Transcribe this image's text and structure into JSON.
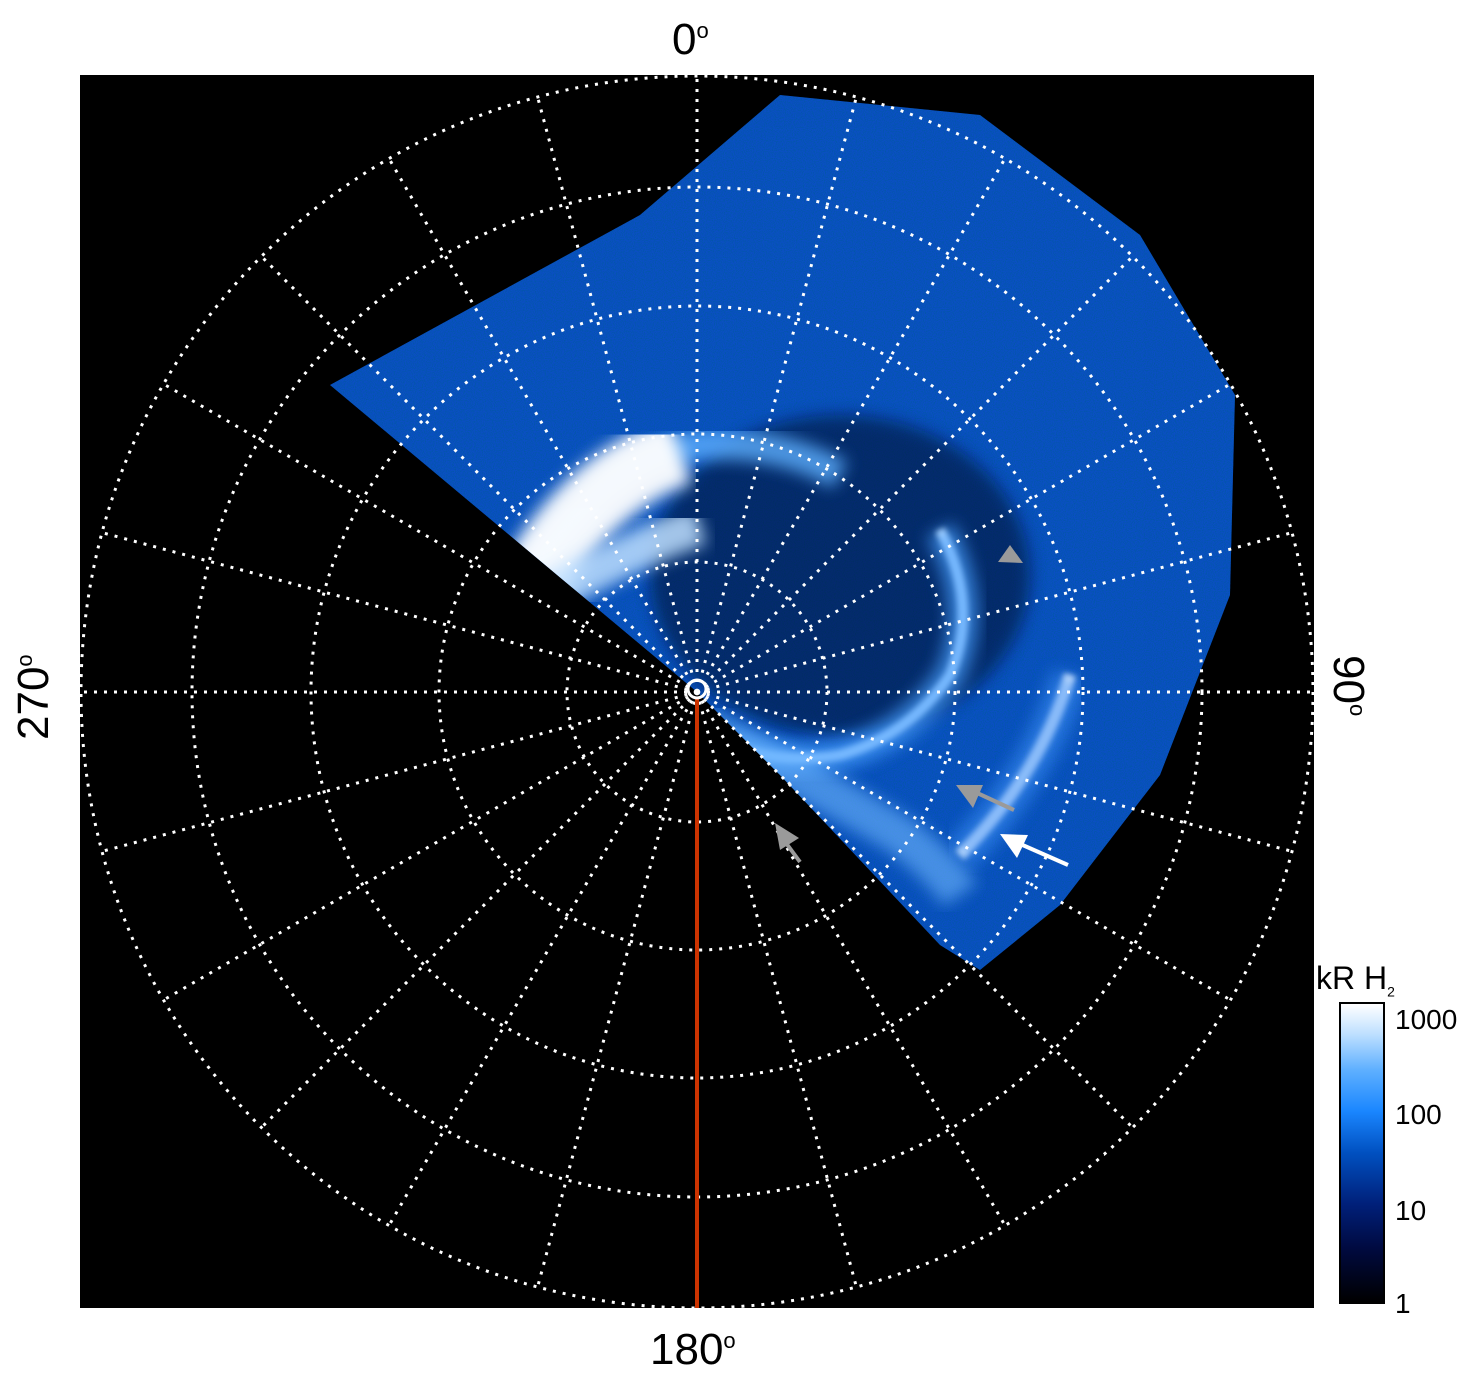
{
  "image": {
    "description_labels": {
      "top": "0°",
      "bottom": "180°",
      "left": "270°",
      "right": "90°"
    },
    "colorbar": {
      "title_main": "kR H",
      "title_sub": "2",
      "ticks": [
        "1000",
        "100",
        "10",
        "1"
      ],
      "scale": "log",
      "colors": [
        "#000000",
        "#00207a",
        "#1a86ff",
        "#ffffff"
      ]
    },
    "colors": {
      "background": "#000000",
      "grid": "#ffffff",
      "meridian_line": "#cc3300",
      "arrow_white": "#ffffff",
      "arrow_gray": "#9a9a9a"
    }
  },
  "labels": {
    "top_num": "0",
    "bottom_num": "180",
    "left_num": "270",
    "right_num": "90",
    "deg": "o"
  }
}
